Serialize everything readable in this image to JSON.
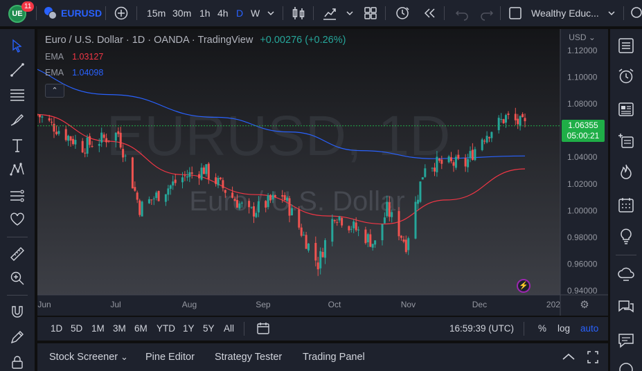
{
  "header": {
    "avatar_initials": "UE",
    "notification_count": "11",
    "symbol": "EURUSD",
    "timeframes": [
      "15m",
      "30m",
      "1h",
      "4h",
      "D",
      "W"
    ],
    "active_timeframe": "D",
    "layout_name": "Wealthy Educ..."
  },
  "chart": {
    "legend_title": "Euro / U.S. Dollar · 1D · OANDA · TradingView",
    "legend_change": "+0.00276 (+0.26%)",
    "ema_rows": [
      {
        "label": "EMA",
        "value": "1.03127",
        "color": "#f23645"
      },
      {
        "label": "EMA",
        "value": "1.04098",
        "color": "#2962ff"
      }
    ],
    "collapse_symbol": "⌃",
    "currency": "USD ⌄",
    "watermark_symbol": "EURUSD, 1D",
    "watermark_name": "Euro / U.S. Dollar",
    "current_price": "1.06355",
    "countdown": "05:00:21",
    "colors": {
      "up": "#26a69a",
      "down": "#ef5350",
      "price_line": "#1fae47",
      "ema_fast": "#f23645",
      "ema_slow": "#2962ff"
    }
  },
  "chart_data": {
    "type": "candlestick",
    "title": "Euro / U.S. Dollar · 1D · OANDA · TradingView",
    "y_tick_labels": [
      "1.12000",
      "1.10000",
      "1.08000",
      "1.06000",
      "1.04000",
      "1.02000",
      "1.00000",
      "0.98000",
      "0.96000",
      "0.94000"
    ],
    "ylim": [
      0.935,
      1.125
    ],
    "x_tick_labels": [
      "Jun",
      "Jul",
      "Aug",
      "Sep",
      "Oct",
      "Nov",
      "Dec",
      "202"
    ],
    "approx_close_path": [
      {
        "date": "2022-06-01",
        "close": 1.072
      },
      {
        "date": "2022-06-20",
        "close": 1.048
      },
      {
        "date": "2022-07-05",
        "close": 1.058
      },
      {
        "date": "2022-07-14",
        "close": 1.002
      },
      {
        "date": "2022-08-01",
        "close": 1.025
      },
      {
        "date": "2022-08-10",
        "close": 1.031
      },
      {
        "date": "2022-08-29",
        "close": 0.998
      },
      {
        "date": "2022-09-12",
        "close": 1.012
      },
      {
        "date": "2022-09-27",
        "close": 0.96
      },
      {
        "date": "2022-10-04",
        "close": 0.998
      },
      {
        "date": "2022-10-21",
        "close": 0.975
      },
      {
        "date": "2022-10-26",
        "close": 1.001
      },
      {
        "date": "2022-11-03",
        "close": 0.975
      },
      {
        "date": "2022-11-11",
        "close": 1.035
      },
      {
        "date": "2022-11-28",
        "close": 1.035
      },
      {
        "date": "2022-12-05",
        "close": 1.055
      },
      {
        "date": "2022-12-15",
        "close": 1.07
      },
      {
        "date": "2022-12-23",
        "close": 1.0636
      }
    ],
    "ema_fast_path": [
      {
        "date": "2022-06-01",
        "value": 1.072
      },
      {
        "date": "2022-07-01",
        "value": 1.052
      },
      {
        "date": "2022-08-01",
        "value": 1.027
      },
      {
        "date": "2022-09-01",
        "value": 1.012
      },
      {
        "date": "2022-10-01",
        "value": 0.996
      },
      {
        "date": "2022-10-25",
        "value": 0.99
      },
      {
        "date": "2022-11-20",
        "value": 1.008
      },
      {
        "date": "2022-12-23",
        "value": 1.0313
      }
    ],
    "ema_slow_path": [
      {
        "date": "2022-05-15",
        "value": 1.112
      },
      {
        "date": "2022-07-01",
        "value": 1.087
      },
      {
        "date": "2022-08-15",
        "value": 1.07
      },
      {
        "date": "2022-09-15",
        "value": 1.059
      },
      {
        "date": "2022-10-15",
        "value": 1.045
      },
      {
        "date": "2022-11-15",
        "value": 1.039
      },
      {
        "date": "2022-12-23",
        "value": 1.041
      }
    ],
    "last_price": 1.06355,
    "grid": false
  },
  "range_bar": {
    "ranges": [
      "1D",
      "5D",
      "1M",
      "3M",
      "6M",
      "YTD",
      "1Y",
      "5Y",
      "All"
    ],
    "clock": "16:59:39 (UTC)",
    "percent_label": "%",
    "log_label": "log",
    "auto_label": "auto"
  },
  "bottom_panel": {
    "tabs": [
      "Stock Screener",
      "Pine Editor",
      "Strategy Tester",
      "Trading Panel"
    ],
    "screener_chevron": "⌄"
  }
}
